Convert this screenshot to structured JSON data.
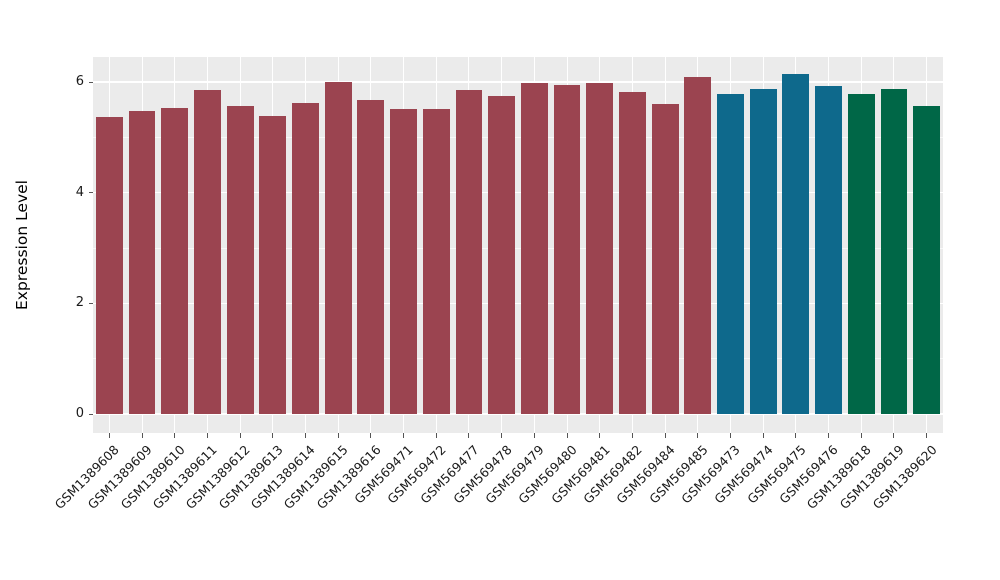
{
  "figure": {
    "background": "#ffffff",
    "panel_background": "#ebebeb",
    "grid_color": "#ffffff",
    "tick_color": "#555555",
    "text_color": "#1a1a1a"
  },
  "chart_data": {
    "type": "bar",
    "title": "",
    "xlabel": "",
    "ylabel": "Expression Level",
    "ylim": [
      0,
      6.45
    ],
    "yticks": [
      0,
      2,
      4,
      6
    ],
    "yticks_minor": [
      1,
      3,
      5
    ],
    "grid": "white major+minor horizontal lines, white vertical lines at category centers, hidden behind bars",
    "legend": false,
    "x_tick_rotation": 45,
    "group_colors": {
      "group1": "#9b4450",
      "group2": "#0e698c",
      "group3": "#006747"
    },
    "categories": [
      "GSM1389608",
      "GSM1389609",
      "GSM1389610",
      "GSM1389611",
      "GSM1389612",
      "GSM1389613",
      "GSM1389614",
      "GSM1389615",
      "GSM1389616",
      "GSM569471",
      "GSM569472",
      "GSM569477",
      "GSM569478",
      "GSM569479",
      "GSM569480",
      "GSM569481",
      "GSM569482",
      "GSM569484",
      "GSM569485",
      "GSM569473",
      "GSM569474",
      "GSM569475",
      "GSM569476",
      "GSM1389618",
      "GSM1389619",
      "GSM1389620"
    ],
    "values": [
      5.36,
      5.47,
      5.53,
      5.86,
      5.57,
      5.39,
      5.62,
      6.0,
      5.67,
      5.52,
      5.52,
      5.86,
      5.75,
      5.98,
      5.94,
      5.99,
      5.82,
      5.61,
      6.09,
      5.78,
      5.88,
      6.14,
      5.92,
      5.78,
      5.87,
      5.57
    ],
    "groups": [
      "group1",
      "group1",
      "group1",
      "group1",
      "group1",
      "group1",
      "group1",
      "group1",
      "group1",
      "group1",
      "group1",
      "group1",
      "group1",
      "group1",
      "group1",
      "group1",
      "group1",
      "group1",
      "group1",
      "group2",
      "group2",
      "group2",
      "group2",
      "group3",
      "group3",
      "group3"
    ]
  }
}
